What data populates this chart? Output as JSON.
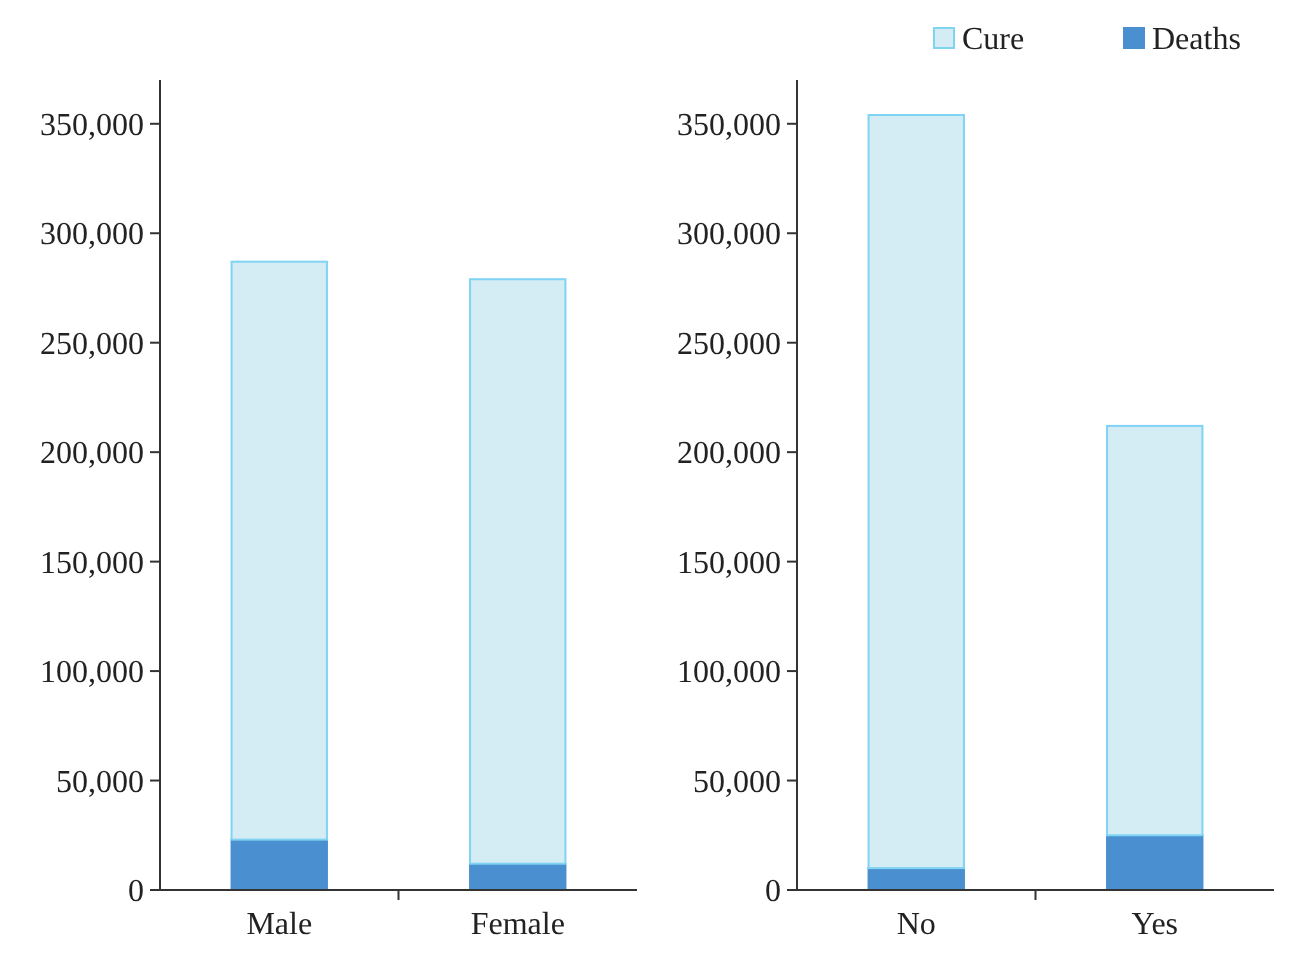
{
  "chart_data": [
    {
      "type": "bar",
      "stacked": true,
      "categories": [
        "Male",
        "Female"
      ],
      "ylim": [
        0,
        370000
      ],
      "yticks": [
        {
          "value": 0,
          "label": "0"
        },
        {
          "value": 50000,
          "label": "50,000"
        },
        {
          "value": 100000,
          "label": "100,000"
        },
        {
          "value": 150000,
          "label": "150,000"
        },
        {
          "value": 200000,
          "label": "200,000"
        },
        {
          "value": 250000,
          "label": "250,000"
        },
        {
          "value": 300000,
          "label": "300,000"
        },
        {
          "value": 350000,
          "label": "350,000"
        }
      ],
      "grid": false,
      "legend": false,
      "series": [
        {
          "color": "#4a8fcf",
          "values": [
            23000,
            12000
          ]
        },
        {
          "color": "#d4ecf4",
          "values": [
            264000,
            267000
          ]
        }
      ]
    },
    {
      "type": "bar",
      "stacked": true,
      "categories": [
        "No",
        "Yes"
      ],
      "ylim": [
        0,
        370000
      ],
      "yticks": [
        {
          "value": 0,
          "label": "0"
        },
        {
          "value": 50000,
          "label": "50,000"
        },
        {
          "value": 100000,
          "label": "100,000"
        },
        {
          "value": 150000,
          "label": "150,000"
        },
        {
          "value": 200000,
          "label": "200,000"
        },
        {
          "value": 250000,
          "label": "250,000"
        },
        {
          "value": 300000,
          "label": "300,000"
        },
        {
          "value": 350000,
          "label": "350,000"
        }
      ],
      "grid": false,
      "legend": "top right",
      "series": [
        {
          "name": "Deaths",
          "color": "#4a8fcf",
          "values": [
            10000,
            25000
          ]
        },
        {
          "name": "Cure",
          "color": "#d4ecf4",
          "values": [
            344000,
            187000
          ]
        }
      ]
    }
  ]
}
